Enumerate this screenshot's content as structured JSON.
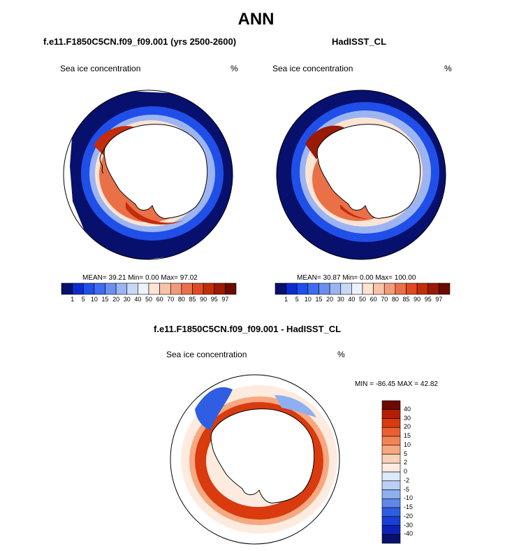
{
  "title": "ANN",
  "panels": [
    {
      "id": "model",
      "title": "f.e11.F1850C5CN.f09_f09.001 (yrs 2500-2600)",
      "variable_label": "Sea ice concentration",
      "units": "%",
      "stats": "MEAN=  39.21  Min=   0.00  Max=  97.02"
    },
    {
      "id": "obs",
      "title": "HadISST_CL",
      "variable_label": "Sea ice concentration",
      "units": "%",
      "stats": "MEAN=  30.87  Min=   0.00  Max= 100.00"
    },
    {
      "id": "diff",
      "title": "f.e11.F1850C5CN.f09_f09.001 - HadISST_CL",
      "variable_label": "Sea ice concentration",
      "units": "%",
      "stats": "MIN = -86.45 MAX = 42.82"
    }
  ],
  "colorbar_abs": {
    "labels": [
      "1",
      "5",
      "10",
      "15",
      "20",
      "30",
      "40",
      "50",
      "60",
      "70",
      "80",
      "85",
      "90",
      "95",
      "97"
    ],
    "colors": [
      "#08106e",
      "#0b2bd0",
      "#1f4fe8",
      "#3f6cf0",
      "#6b8ff0",
      "#9cb5f2",
      "#c7d8f5",
      "#ecf2fb",
      "#fde4d5",
      "#f8c3a8",
      "#f29b7a",
      "#ea7048",
      "#de4a22",
      "#c22d0a",
      "#9a1a06",
      "#6b0a02"
    ]
  },
  "colorbar_diff": {
    "labels": [
      "40",
      "30",
      "20",
      "15",
      "10",
      "5",
      "2",
      "0",
      "-2",
      "-5",
      "-10",
      "-15",
      "-20",
      "-30",
      "-40"
    ],
    "colors": [
      "#6b0a02",
      "#b31e05",
      "#d93a0e",
      "#ea6030",
      "#f28454",
      "#f7a880",
      "#fbd0b8",
      "#fdebdf",
      "#dde8f8",
      "#b9cff5",
      "#8eb0f0",
      "#5f88ea",
      "#2f5ee2",
      "#1a3dd8",
      "#0d22b5",
      "#08106e"
    ]
  },
  "map_layers": {
    "ice_max": "#08106e",
    "ice_high": "#1f4fe8",
    "ice_mid": "#9cb5f2",
    "ice_low": "#fde4d5",
    "ice_core": "#ea7048",
    "ice_peak": "#c22d0a",
    "land": "#ffffff",
    "outline": "#000000"
  }
}
